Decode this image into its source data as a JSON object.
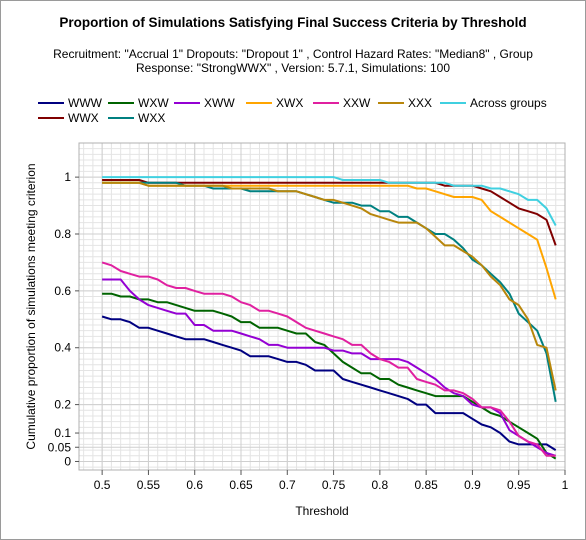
{
  "chart_data": {
    "type": "line",
    "title": "Proportion of Simulations Satisfying Final Success Criteria by Threshold",
    "subtitle": "Recruitment: \"Accrual 1\" Dropouts: \"Dropout 1\" , Control Hazard Rates: \"Median8\" , Group Response: \"StrongWWX\" , Version: 5.7.1, Simulations: 100",
    "xlabel": "Threshold",
    "ylabel": "Cumulative proportion of simulations meeting criterion",
    "xlim": [
      0.475,
      1.0
    ],
    "ylim": [
      -0.03,
      1.12
    ],
    "xticks": [
      0.5,
      0.55,
      0.6,
      0.65,
      0.7,
      0.75,
      0.8,
      0.85,
      0.9,
      0.95,
      1
    ],
    "xtick_labels": [
      "0.5",
      "0.55",
      "0.6",
      "0.65",
      "0.7",
      "0.75",
      "0.8",
      "0.85",
      "0.9",
      "0.95",
      "1"
    ],
    "yticks": [
      0,
      0.05,
      0.1,
      0.2,
      0.4,
      0.6,
      0.8,
      1
    ],
    "ytick_labels": [
      "0",
      "0.05",
      "0.1",
      "0.2",
      "0.4",
      "0.6",
      "0.8",
      "1"
    ],
    "grid": true,
    "x": [
      0.5,
      0.51,
      0.52,
      0.53,
      0.54,
      0.55,
      0.56,
      0.57,
      0.58,
      0.59,
      0.6,
      0.61,
      0.62,
      0.63,
      0.64,
      0.65,
      0.66,
      0.67,
      0.68,
      0.69,
      0.7,
      0.71,
      0.72,
      0.73,
      0.74,
      0.75,
      0.76,
      0.77,
      0.78,
      0.79,
      0.8,
      0.81,
      0.82,
      0.83,
      0.84,
      0.85,
      0.86,
      0.87,
      0.88,
      0.89,
      0.9,
      0.91,
      0.92,
      0.93,
      0.94,
      0.95,
      0.96,
      0.97,
      0.98,
      0.99
    ],
    "series": [
      {
        "name": "WWW",
        "color": "#000080",
        "values": [
          0.51,
          0.5,
          0.5,
          0.49,
          0.47,
          0.47,
          0.46,
          0.45,
          0.44,
          0.43,
          0.43,
          0.43,
          0.42,
          0.41,
          0.4,
          0.39,
          0.37,
          0.37,
          0.37,
          0.36,
          0.35,
          0.35,
          0.34,
          0.32,
          0.32,
          0.32,
          0.29,
          0.28,
          0.27,
          0.26,
          0.25,
          0.24,
          0.23,
          0.22,
          0.2,
          0.2,
          0.17,
          0.17,
          0.17,
          0.17,
          0.15,
          0.13,
          0.12,
          0.1,
          0.07,
          0.06,
          0.06,
          0.06,
          0.06,
          0.04
        ]
      },
      {
        "name": "WWX",
        "color": "#800000",
        "values": [
          0.99,
          0.99,
          0.99,
          0.99,
          0.99,
          0.98,
          0.98,
          0.98,
          0.98,
          0.98,
          0.98,
          0.98,
          0.98,
          0.98,
          0.98,
          0.98,
          0.98,
          0.98,
          0.98,
          0.98,
          0.98,
          0.98,
          0.98,
          0.98,
          0.98,
          0.98,
          0.98,
          0.98,
          0.98,
          0.98,
          0.98,
          0.98,
          0.98,
          0.98,
          0.98,
          0.98,
          0.98,
          0.97,
          0.97,
          0.97,
          0.97,
          0.96,
          0.95,
          0.93,
          0.91,
          0.89,
          0.88,
          0.87,
          0.85,
          0.76
        ]
      },
      {
        "name": "WXW",
        "color": "#006400",
        "values": [
          0.59,
          0.59,
          0.58,
          0.58,
          0.57,
          0.57,
          0.56,
          0.56,
          0.55,
          0.54,
          0.53,
          0.53,
          0.53,
          0.52,
          0.51,
          0.49,
          0.49,
          0.47,
          0.47,
          0.47,
          0.46,
          0.45,
          0.45,
          0.42,
          0.41,
          0.38,
          0.35,
          0.33,
          0.31,
          0.31,
          0.29,
          0.29,
          0.27,
          0.26,
          0.25,
          0.24,
          0.23,
          0.23,
          0.23,
          0.23,
          0.21,
          0.19,
          0.17,
          0.16,
          0.14,
          0.12,
          0.1,
          0.08,
          0.03,
          0.01
        ]
      },
      {
        "name": "WXX",
        "color": "#008080",
        "values": [
          0.98,
          0.98,
          0.98,
          0.98,
          0.98,
          0.98,
          0.98,
          0.98,
          0.98,
          0.97,
          0.97,
          0.97,
          0.96,
          0.96,
          0.96,
          0.96,
          0.95,
          0.95,
          0.95,
          0.95,
          0.95,
          0.95,
          0.94,
          0.93,
          0.92,
          0.91,
          0.91,
          0.91,
          0.9,
          0.9,
          0.88,
          0.88,
          0.86,
          0.86,
          0.84,
          0.82,
          0.8,
          0.8,
          0.78,
          0.75,
          0.71,
          0.69,
          0.66,
          0.63,
          0.59,
          0.52,
          0.49,
          0.46,
          0.38,
          0.21
        ]
      },
      {
        "name": "XWW",
        "color": "#9400D3",
        "values": [
          0.64,
          0.64,
          0.64,
          0.6,
          0.57,
          0.55,
          0.54,
          0.53,
          0.52,
          0.52,
          0.48,
          0.48,
          0.46,
          0.46,
          0.46,
          0.45,
          0.44,
          0.43,
          0.41,
          0.41,
          0.4,
          0.4,
          0.4,
          0.4,
          0.4,
          0.39,
          0.39,
          0.38,
          0.38,
          0.36,
          0.36,
          0.36,
          0.36,
          0.35,
          0.33,
          0.31,
          0.29,
          0.26,
          0.24,
          0.23,
          0.2,
          0.19,
          0.19,
          0.17,
          0.11,
          0.09,
          0.07,
          0.05,
          0.03,
          0.02
        ]
      },
      {
        "name": "XWX",
        "color": "#FFA500",
        "values": [
          0.98,
          0.98,
          0.98,
          0.98,
          0.98,
          0.97,
          0.97,
          0.97,
          0.97,
          0.97,
          0.97,
          0.97,
          0.97,
          0.97,
          0.97,
          0.97,
          0.97,
          0.97,
          0.97,
          0.97,
          0.97,
          0.97,
          0.97,
          0.97,
          0.97,
          0.97,
          0.97,
          0.97,
          0.97,
          0.97,
          0.97,
          0.97,
          0.97,
          0.97,
          0.96,
          0.96,
          0.95,
          0.94,
          0.93,
          0.93,
          0.93,
          0.92,
          0.88,
          0.86,
          0.84,
          0.82,
          0.8,
          0.78,
          0.68,
          0.57
        ]
      },
      {
        "name": "XXW",
        "color": "#E020A0",
        "values": [
          0.7,
          0.69,
          0.67,
          0.66,
          0.65,
          0.65,
          0.64,
          0.62,
          0.61,
          0.61,
          0.6,
          0.59,
          0.59,
          0.59,
          0.58,
          0.56,
          0.55,
          0.53,
          0.53,
          0.52,
          0.51,
          0.49,
          0.47,
          0.46,
          0.45,
          0.44,
          0.43,
          0.41,
          0.41,
          0.38,
          0.36,
          0.35,
          0.33,
          0.33,
          0.29,
          0.28,
          0.27,
          0.25,
          0.25,
          0.24,
          0.22,
          0.19,
          0.19,
          0.18,
          0.14,
          0.09,
          0.07,
          0.06,
          0.02,
          0.02
        ]
      },
      {
        "name": "XXX",
        "color": "#B8860B",
        "values": [
          0.98,
          0.98,
          0.98,
          0.98,
          0.98,
          0.97,
          0.97,
          0.97,
          0.97,
          0.97,
          0.97,
          0.97,
          0.97,
          0.97,
          0.96,
          0.96,
          0.96,
          0.96,
          0.96,
          0.95,
          0.95,
          0.95,
          0.94,
          0.93,
          0.92,
          0.92,
          0.91,
          0.9,
          0.89,
          0.87,
          0.86,
          0.85,
          0.84,
          0.84,
          0.84,
          0.82,
          0.79,
          0.76,
          0.76,
          0.74,
          0.72,
          0.69,
          0.65,
          0.62,
          0.57,
          0.55,
          0.5,
          0.41,
          0.4,
          0.25
        ]
      },
      {
        "name": "Across groups",
        "color": "#40D0E0",
        "values": [
          1.0,
          1.0,
          1.0,
          1.0,
          1.0,
          1.0,
          1.0,
          1.0,
          1.0,
          1.0,
          1.0,
          1.0,
          1.0,
          1.0,
          1.0,
          1.0,
          1.0,
          1.0,
          1.0,
          1.0,
          1.0,
          1.0,
          1.0,
          1.0,
          1.0,
          1.0,
          0.99,
          0.99,
          0.99,
          0.99,
          0.99,
          0.98,
          0.98,
          0.98,
          0.98,
          0.98,
          0.98,
          0.98,
          0.97,
          0.97,
          0.97,
          0.97,
          0.96,
          0.96,
          0.95,
          0.94,
          0.92,
          0.92,
          0.89,
          0.83
        ]
      }
    ]
  }
}
